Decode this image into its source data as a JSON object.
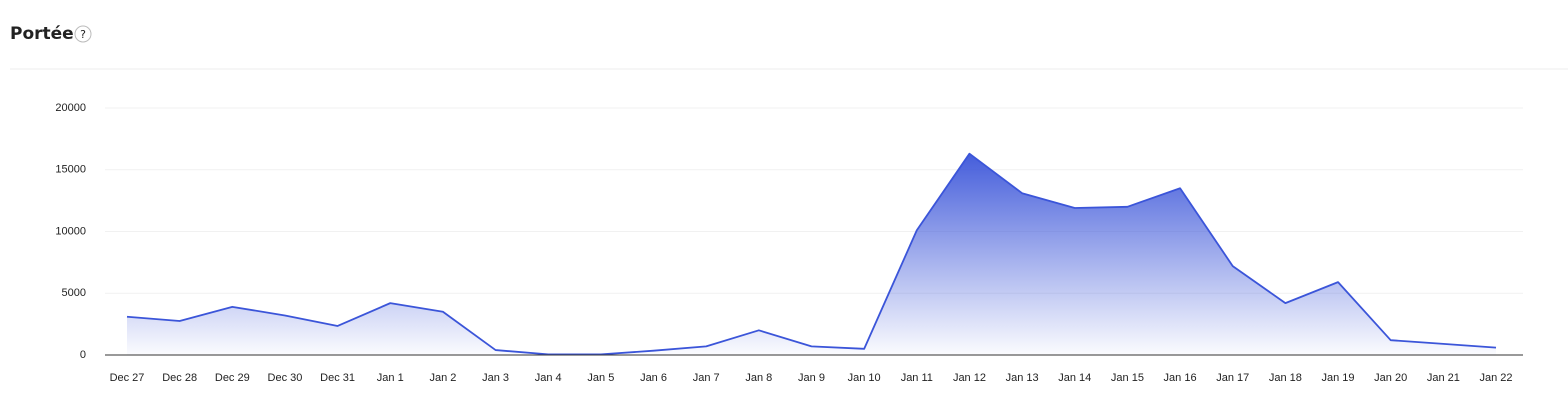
{
  "chart_data": {
    "type": "area",
    "title": "Portée",
    "help_icon": "?",
    "categories": [
      "Dec 27",
      "Dec 28",
      "Dec 29",
      "Dec 30",
      "Dec 31",
      "Jan 1",
      "Jan 2",
      "Jan 3",
      "Jan 4",
      "Jan 5",
      "Jan 6",
      "Jan 7",
      "Jan 8",
      "Jan 9",
      "Jan 10",
      "Jan 11",
      "Jan 12",
      "Jan 13",
      "Jan 14",
      "Jan 15",
      "Jan 16",
      "Jan 17",
      "Jan 18",
      "Jan 19",
      "Jan 20",
      "Jan 21",
      "Jan 22"
    ],
    "series": [
      {
        "color": "#3b55d9",
        "values": [
          3100,
          2750,
          3900,
          3200,
          2350,
          4200,
          3500,
          400,
          50,
          50,
          350,
          700,
          2000,
          700,
          500,
          10100,
          16300,
          13100,
          11900,
          12000,
          13500,
          7200,
          4200,
          5900,
          1200,
          900,
          600
        ]
      }
    ],
    "ylim": [
      0,
      20000
    ],
    "yticks": [
      0,
      5000,
      10000,
      15000,
      20000
    ],
    "grid": true
  }
}
